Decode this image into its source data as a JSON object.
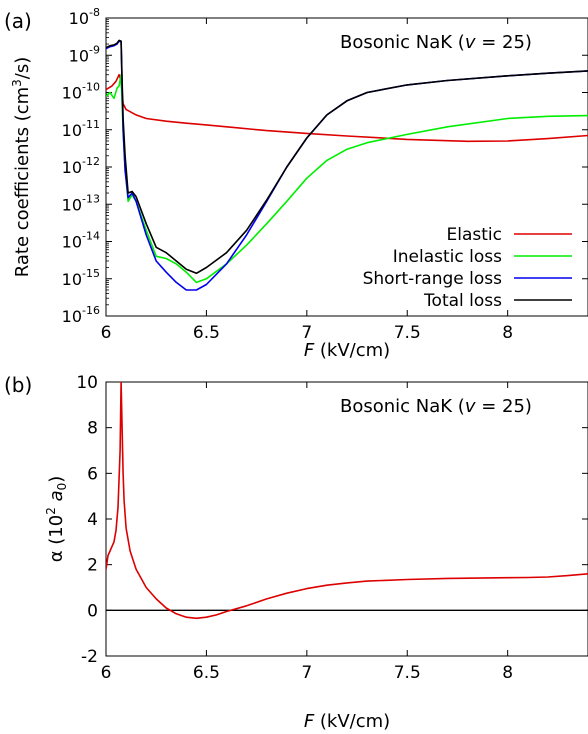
{
  "chart_data": [
    {
      "panel_label": "(a)",
      "type": "line",
      "annotation": "Bosonic NaK (v = 25)",
      "title": "",
      "xlabel": "F (kV/cm)",
      "ylabel": "Rate coefficients (cm³/s)",
      "y_scale": "log",
      "xlim": [
        6.0,
        8.4
      ],
      "ylim": [
        1e-16,
        1e-08
      ],
      "x_ticks": [
        "6",
        "6.5",
        "7",
        "7.5",
        "8"
      ],
      "y_tick_exponents": [
        -16,
        -15,
        -14,
        -13,
        -12,
        -11,
        -10,
        -9,
        -8
      ],
      "legend_placement": "bottom-right",
      "series": [
        {
          "name": "Elastic",
          "color": "#dd0000",
          "x": [
            6.0,
            6.03,
            6.05,
            6.065,
            6.075,
            6.085,
            6.1,
            6.15,
            6.2,
            6.3,
            6.4,
            6.5,
            6.6,
            6.8,
            7.0,
            7.2,
            7.5,
            7.8,
            8.0,
            8.2,
            8.4
          ],
          "y": [
            1.2e-10,
            1.5e-10,
            2e-10,
            3e-10,
            2e-10,
            5e-11,
            3.5e-11,
            2.5e-11,
            2e-11,
            1.7e-11,
            1.5e-11,
            1.35e-11,
            1.2e-11,
            9.5e-12,
            8e-12,
            6.8e-12,
            5.5e-12,
            4.9e-12,
            5e-12,
            5.8e-12,
            7e-12
          ]
        },
        {
          "name": "Inelastic loss",
          "color": "#00ee00",
          "x": [
            6.0,
            6.02,
            6.04,
            6.055,
            6.065,
            6.075,
            6.085,
            6.095,
            6.11,
            6.13,
            6.15,
            6.2,
            6.25,
            6.3,
            6.35,
            6.4,
            6.45,
            6.5,
            6.6,
            6.7,
            6.8,
            6.9,
            7.0,
            7.1,
            7.2,
            7.3,
            7.5,
            7.7,
            8.0,
            8.2,
            8.4
          ],
          "y": [
            8e-11,
            1e-10,
            7e-11,
            1.3e-10,
            1.5e-10,
            3e-10,
            1e-11,
            1e-12,
            1.2e-13,
            1.8e-13,
            1.2e-13,
            2e-14,
            4e-15,
            3.5e-15,
            2.5e-15,
            1.5e-15,
            8e-16,
            1e-15,
            2.5e-15,
            8e-15,
            3e-14,
            1.2e-13,
            5e-13,
            1.5e-12,
            3e-12,
            4.5e-12,
            7.5e-12,
            1.2e-11,
            2e-11,
            2.3e-11,
            2.4e-11
          ]
        },
        {
          "name": "Short-range loss",
          "color": "#0000ee",
          "x": [
            6.0,
            6.02,
            6.04,
            6.055,
            6.065,
            6.075,
            6.085,
            6.095,
            6.11,
            6.13,
            6.15,
            6.2,
            6.25,
            6.3,
            6.35,
            6.4,
            6.45,
            6.5,
            6.6,
            6.7,
            6.8,
            6.9,
            7.0,
            7.1,
            7.2,
            7.3,
            7.5,
            7.7,
            8.0,
            8.2,
            8.4
          ],
          "y": [
            1.5e-09,
            1.7e-09,
            1.8e-09,
            2e-09,
            2.4e-09,
            2.3e-09,
            1e-11,
            8e-13,
            1.5e-13,
            2e-13,
            1.2e-13,
            1.5e-14,
            3e-15,
            1.5e-15,
            8e-16,
            5e-16,
            5e-16,
            7e-16,
            2.5e-15,
            1.5e-14,
            1.2e-13,
            1e-12,
            6e-12,
            2.5e-11,
            6e-11,
            1e-10,
            1.6e-10,
            2.1e-10,
            2.8e-10,
            3.3e-10,
            3.8e-10
          ]
        },
        {
          "name": "Total loss",
          "color": "#000000",
          "x": [
            6.0,
            6.02,
            6.04,
            6.055,
            6.065,
            6.075,
            6.085,
            6.095,
            6.11,
            6.13,
            6.15,
            6.2,
            6.25,
            6.3,
            6.35,
            6.4,
            6.45,
            6.5,
            6.6,
            6.7,
            6.8,
            6.9,
            7.0,
            7.1,
            7.2,
            7.3,
            7.5,
            7.7,
            8.0,
            8.2,
            8.4
          ],
          "y": [
            1.6e-09,
            1.8e-09,
            1.9e-09,
            2.1e-09,
            2.5e-09,
            2.4e-09,
            2e-11,
            2e-12,
            2e-13,
            2.2e-13,
            1.6e-13,
            3e-14,
            7e-15,
            5e-15,
            3e-15,
            1.8e-15,
            1.4e-15,
            2e-15,
            5e-15,
            2e-14,
            1.3e-13,
            1e-12,
            6e-12,
            2.5e-11,
            6e-11,
            1e-10,
            1.6e-10,
            2.1e-10,
            2.8e-10,
            3.3e-10,
            3.8e-10
          ]
        }
      ]
    },
    {
      "panel_label": "(b)",
      "type": "line",
      "annotation": "Bosonic NaK (v = 25)",
      "title": "",
      "xlabel": "F (kV/cm)",
      "ylabel": "α (10² a₀)",
      "xlim": [
        6.0,
        8.4
      ],
      "ylim": [
        -2,
        10
      ],
      "x_ticks": [
        "6",
        "6.5",
        "7",
        "7.5",
        "8"
      ],
      "y_ticks": [
        "-2",
        "0",
        "2",
        "4",
        "6",
        "8",
        "10"
      ],
      "reference_line_y": 0,
      "series": [
        {
          "color": "#dd0000",
          "x": [
            6.0,
            6.01,
            6.02,
            6.03,
            6.04,
            6.05,
            6.06,
            6.07,
            6.075,
            6.08,
            6.085,
            6.09,
            6.1,
            6.12,
            6.15,
            6.2,
            6.25,
            6.3,
            6.35,
            6.4,
            6.45,
            6.5,
            6.55,
            6.6,
            6.7,
            6.8,
            6.9,
            7.0,
            7.1,
            7.2,
            7.3,
            7.5,
            7.7,
            7.9,
            8.0,
            8.1,
            8.2,
            8.3,
            8.4
          ],
          "y": [
            1.8,
            2.4,
            2.6,
            2.8,
            3.0,
            3.5,
            4.5,
            7.0,
            10.0,
            8.0,
            6.0,
            4.8,
            3.6,
            2.6,
            1.8,
            1.0,
            0.5,
            0.1,
            -0.15,
            -0.3,
            -0.35,
            -0.3,
            -0.2,
            -0.05,
            0.2,
            0.5,
            0.75,
            0.95,
            1.1,
            1.2,
            1.28,
            1.35,
            1.4,
            1.42,
            1.43,
            1.44,
            1.46,
            1.52,
            1.6
          ]
        }
      ]
    }
  ]
}
